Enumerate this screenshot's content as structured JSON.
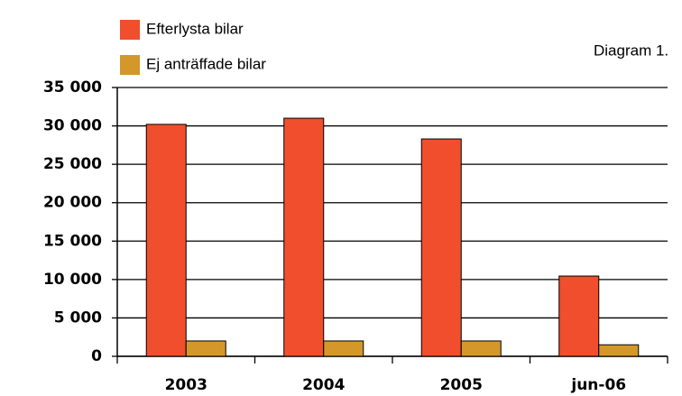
{
  "chart_data": {
    "type": "bar",
    "annotation": "Diagram 1.",
    "categories": [
      "2003",
      "2004",
      "2005",
      "jun-06"
    ],
    "series": [
      {
        "name": "Efterlysta bilar",
        "color": "#f04e2d",
        "values": [
          30200,
          31000,
          28300,
          10450
        ]
      },
      {
        "name": "Ej anträffade bilar",
        "color": "#d4982a",
        "values": [
          2000,
          2000,
          2000,
          1500
        ]
      }
    ],
    "ylim": [
      0,
      35000
    ],
    "yticks": [
      {
        "value": 0,
        "label": "0"
      },
      {
        "value": 5000,
        "label": "5 000"
      },
      {
        "value": 10000,
        "label": "10 000"
      },
      {
        "value": 15000,
        "label": "15 000"
      },
      {
        "value": 20000,
        "label": "20 000"
      },
      {
        "value": 25000,
        "label": "25 000"
      },
      {
        "value": 30000,
        "label": "30 000"
      },
      {
        "value": 35000,
        "label": "35 000"
      }
    ],
    "grid": true
  }
}
